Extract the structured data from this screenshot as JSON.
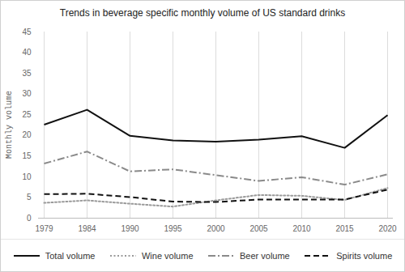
{
  "chart_data": {
    "type": "line",
    "title": "Trends in beverage specific monthly volume of US standard drinks",
    "y_label": "Monthly volume",
    "x": [
      1979,
      1984,
      1990,
      1995,
      2000,
      2005,
      2010,
      2015,
      2020
    ],
    "series": [
      {
        "name": "Total volume",
        "color": "#111111",
        "line_style": "solid",
        "values": [
          22.6,
          26.2,
          19.9,
          18.8,
          18.5,
          19.0,
          19.8,
          17.0,
          24.9
        ]
      },
      {
        "name": "Wine volume",
        "color": "#9a9a9a",
        "line_style": "dotted",
        "values": [
          3.7,
          4.3,
          3.5,
          2.8,
          4.3,
          5.6,
          5.4,
          4.4,
          7.3
        ]
      },
      {
        "name": "Beer volume",
        "color": "#8a8a8a",
        "line_style": "dashdot",
        "values": [
          13.2,
          16.1,
          11.3,
          11.8,
          10.4,
          9.0,
          9.9,
          8.1,
          10.6
        ]
      },
      {
        "name": "Spirits volume",
        "color": "#111111",
        "line_style": "dashed",
        "values": [
          5.8,
          5.9,
          5.1,
          4.0,
          3.9,
          4.5,
          4.5,
          4.5,
          6.9
        ]
      }
    ],
    "ylim": [
      0,
      45
    ],
    "yticks": [
      0,
      5,
      10,
      15,
      20,
      25,
      30,
      35,
      40,
      45
    ],
    "grid": "x",
    "legend": "bottom"
  }
}
